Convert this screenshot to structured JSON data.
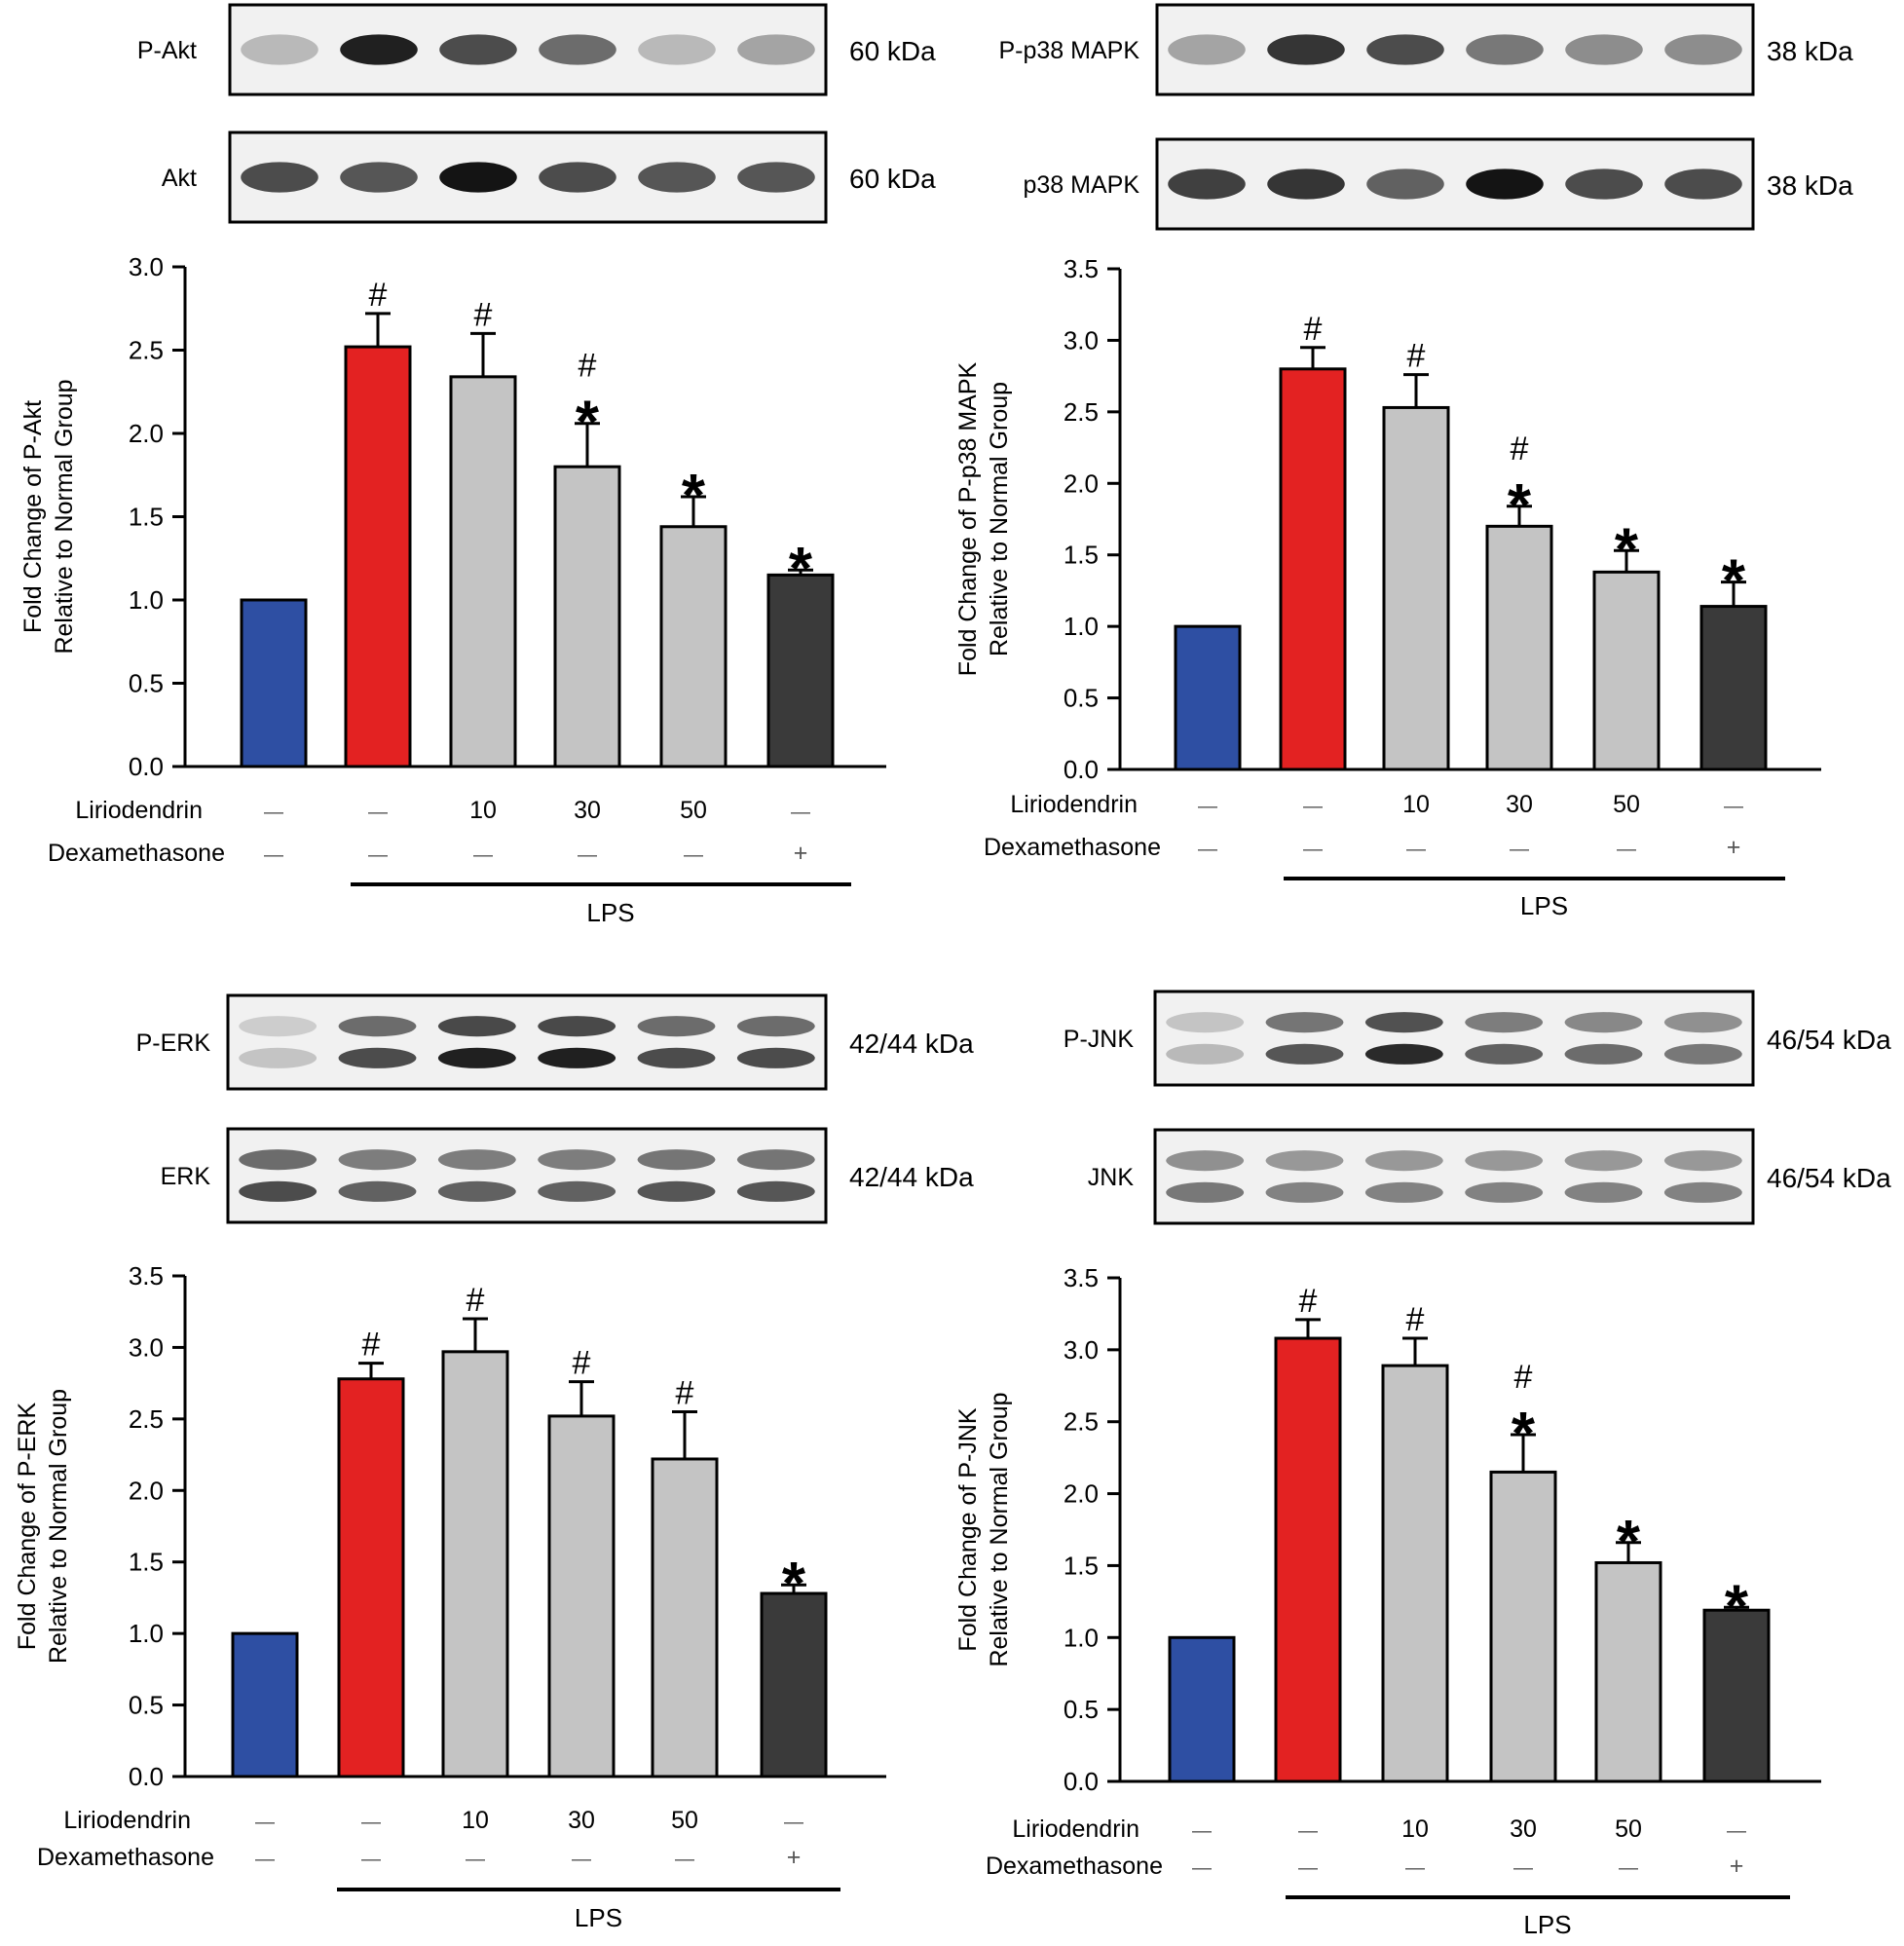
{
  "figure": {
    "colors": {
      "normal": "#2e4fa3",
      "lps": "#e32222",
      "liriodendrin": "#c4c4c4",
      "dexamethasone": "#3a3a3a",
      "ink": "#000000",
      "blot_background": "#f1f1f1",
      "band": "#141414"
    },
    "treatment_rows": {
      "liriodendrin_label": "Liriodendrin",
      "dexamethasone_label": "Dexamethasone",
      "liriodendrin_values": [
        "—",
        "—",
        "10",
        "30",
        "50",
        "—"
      ],
      "dexamethasone_values": [
        "—",
        "—",
        "—",
        "—",
        "—",
        "+"
      ],
      "lps_label": "LPS"
    },
    "panels": [
      {
        "id": "akt",
        "blots": [
          {
            "label": "P-Akt",
            "kda": "60 kDa",
            "bands": [
              0.25,
              0.95,
              0.75,
              0.6,
              0.25,
              0.35
            ],
            "doublet": false
          },
          {
            "label": "Akt",
            "kda": "60 kDa",
            "bands": [
              0.75,
              0.7,
              1.0,
              0.75,
              0.7,
              0.7
            ],
            "doublet": false
          }
        ]
      },
      {
        "id": "p38",
        "blots": [
          {
            "label": "P-p38 MAPK",
            "kda": "38 kDa",
            "bands": [
              0.35,
              0.85,
              0.75,
              0.55,
              0.45,
              0.45
            ],
            "doublet": false
          },
          {
            "label": "p38 MAPK",
            "kda": "38 kDa",
            "bands": [
              0.8,
              0.85,
              0.65,
              1.0,
              0.75,
              0.75
            ],
            "doublet": false
          }
        ]
      },
      {
        "id": "erk",
        "blots": [
          {
            "label": "P-ERK",
            "kda": "42/44 kDa",
            "bands": [
              0.2,
              0.75,
              0.95,
              0.95,
              0.75,
              0.75
            ],
            "doublet": true
          },
          {
            "label": "ERK",
            "kda": "42/44 kDa",
            "bands": [
              0.75,
              0.65,
              0.65,
              0.65,
              0.7,
              0.7
            ],
            "doublet": true
          }
        ]
      },
      {
        "id": "jnk",
        "blots": [
          {
            "label": "P-JNK",
            "kda": "46/54 kDa",
            "bands": [
              0.25,
              0.7,
              0.9,
              0.65,
              0.6,
              0.55
            ],
            "doublet": true
          },
          {
            "label": "JNK",
            "kda": "46/54 kDa",
            "bands": [
              0.55,
              0.5,
              0.5,
              0.5,
              0.5,
              0.5
            ],
            "doublet": true
          }
        ]
      }
    ]
  },
  "chart_data": [
    {
      "type": "bar",
      "title": "",
      "ylabel_line1": "Fold Change of P-Akt",
      "ylabel_line2": "Relative to Normal Group",
      "categories": [
        "Normal",
        "LPS",
        "LPS + Liriodendrin 10",
        "LPS + Liriodendrin 30",
        "LPS + Liriodendrin 50",
        "LPS + Dexamethasone"
      ],
      "values": [
        1.0,
        2.52,
        2.34,
        1.8,
        1.44,
        1.15
      ],
      "errors": [
        0.0,
        0.2,
        0.26,
        0.26,
        0.18,
        0.03
      ],
      "annotations": [
        [],
        [
          "#"
        ],
        [
          "#"
        ],
        [
          "#",
          "*"
        ],
        [
          "*"
        ],
        [
          "*"
        ]
      ],
      "ylim": [
        0,
        3.0
      ],
      "yticks": [
        0,
        0.5,
        1.0,
        1.5,
        2.0,
        2.5,
        3.0
      ],
      "ytick_labels": [
        "0.0",
        "0.5",
        "1.0",
        "1.5",
        "2.0",
        "2.5",
        "3.0"
      ]
    },
    {
      "type": "bar",
      "title": "",
      "ylabel_line1": "Fold Change of P-p38 MAPK",
      "ylabel_line2": "Relative to Normal Group",
      "categories": [
        "Normal",
        "LPS",
        "LPS + Liriodendrin 10",
        "LPS + Liriodendrin 30",
        "LPS + Liriodendrin 50",
        "LPS + Dexamethasone"
      ],
      "values": [
        1.0,
        2.8,
        2.53,
        1.7,
        1.38,
        1.14
      ],
      "errors": [
        0.0,
        0.15,
        0.23,
        0.14,
        0.15,
        0.17
      ],
      "annotations": [
        [],
        [
          "#"
        ],
        [
          "#"
        ],
        [
          "#",
          "*"
        ],
        [
          "*"
        ],
        [
          "*"
        ]
      ],
      "ylim": [
        0,
        3.5
      ],
      "yticks": [
        0,
        0.5,
        1.0,
        1.5,
        2.0,
        2.5,
        3.0,
        3.5
      ],
      "ytick_labels": [
        "0.0",
        "0.5",
        "1.0",
        "1.5",
        "2.0",
        "2.5",
        "3.0",
        "3.5"
      ]
    },
    {
      "type": "bar",
      "title": "",
      "ylabel_line1": "Fold Change of P-ERK",
      "ylabel_line2": "Relative to Normal Group",
      "categories": [
        "Normal",
        "LPS",
        "LPS + Liriodendrin 10",
        "LPS + Liriodendrin 30",
        "LPS + Liriodendrin 50",
        "LPS + Dexamethasone"
      ],
      "values": [
        1.0,
        2.78,
        2.97,
        2.52,
        2.22,
        1.28
      ],
      "errors": [
        0.0,
        0.11,
        0.23,
        0.24,
        0.33,
        0.06
      ],
      "annotations": [
        [],
        [
          "#"
        ],
        [
          "#"
        ],
        [
          "#"
        ],
        [
          "#"
        ],
        [
          "*"
        ]
      ],
      "ylim": [
        0,
        3.5
      ],
      "yticks": [
        0,
        0.5,
        1.0,
        1.5,
        2.0,
        2.5,
        3.0,
        3.5
      ],
      "ytick_labels": [
        "0.0",
        "0.5",
        "1.0",
        "1.5",
        "2.0",
        "2.5",
        "3.0",
        "3.5"
      ]
    },
    {
      "type": "bar",
      "title": "",
      "ylabel_line1": "Fold Change of P-JNK",
      "ylabel_line2": "Relative to Normal Group",
      "categories": [
        "Normal",
        "LPS",
        "LPS + Liriodendrin 10",
        "LPS + Liriodendrin 30",
        "LPS + Liriodendrin 50",
        "LPS + Dexamethasone"
      ],
      "values": [
        1.0,
        3.08,
        2.89,
        2.15,
        1.52,
        1.19
      ],
      "errors": [
        0.0,
        0.13,
        0.19,
        0.26,
        0.14,
        0.02
      ],
      "annotations": [
        [],
        [
          "#"
        ],
        [
          "#"
        ],
        [
          "#",
          "*"
        ],
        [
          "*"
        ],
        [
          "*"
        ]
      ],
      "ylim": [
        0,
        3.5
      ],
      "yticks": [
        0,
        0.5,
        1.0,
        1.5,
        2.0,
        2.5,
        3.0,
        3.5
      ],
      "ytick_labels": [
        "0.0",
        "0.5",
        "1.0",
        "1.5",
        "2.0",
        "2.5",
        "3.0",
        "3.5"
      ]
    }
  ]
}
